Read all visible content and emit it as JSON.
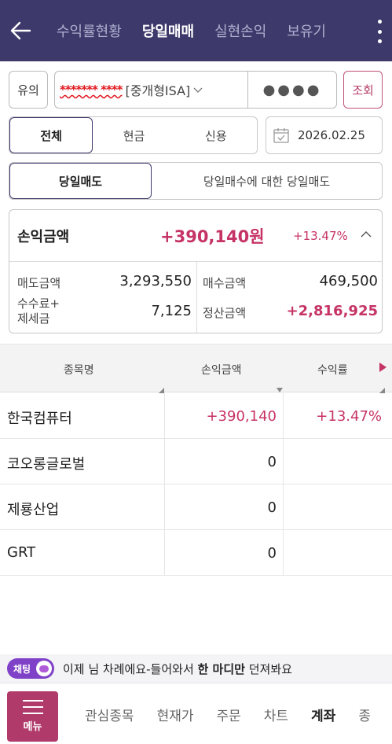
{
  "header": {
    "tabs": [
      {
        "label": "수익률현황",
        "active": false
      },
      {
        "label": "당일매매",
        "active": true
      },
      {
        "label": "실현손익",
        "active": false
      },
      {
        "label": "보유기",
        "active": false
      }
    ]
  },
  "account": {
    "caution_label": "유의",
    "account_number_redacted": "******* ****",
    "account_type": "[중개형ISA]",
    "password_mask": "●●●●",
    "query_label": "조회"
  },
  "filter": {
    "segments": [
      "전체",
      "현금",
      "신용"
    ],
    "active_segment": "전체",
    "date": "2026.02.25"
  },
  "trade_type": {
    "options": [
      "당일매도",
      "당일매수에 대한 당일매도"
    ],
    "active": "당일매도"
  },
  "summary": {
    "pl_label": "손익금액",
    "pl_value": "+390,140원",
    "pl_rate": "+13.47%",
    "sell_label": "매도금액",
    "sell_value": "3,293,550",
    "buy_label": "매수금액",
    "buy_value": "469,500",
    "fee_label_1": "수수료+",
    "fee_label_2": "제세금",
    "fee_value": "7,125",
    "settle_label": "정산금액",
    "settle_value": "+2,816,925"
  },
  "table": {
    "columns": [
      "종목명",
      "손익금액",
      "수익률"
    ],
    "rows": [
      {
        "name": "한국컴퓨터",
        "pl": "+390,140",
        "rate": "+13.47%",
        "highlight": true
      },
      {
        "name": "코오롱글로벌",
        "pl": "0",
        "rate": "",
        "highlight": false
      },
      {
        "name": "제룡산업",
        "pl": "0",
        "rate": "",
        "highlight": false
      },
      {
        "name": "GRT",
        "pl": "0",
        "rate": "",
        "highlight": false
      }
    ]
  },
  "chat": {
    "pill_label": "채팅",
    "text_prefix": "이제 님 차례에요-들어와서 ",
    "text_bold": "한 마디만",
    "text_suffix": " 던져봐요"
  },
  "bottom_nav": {
    "menu_label": "메뉴",
    "items": [
      {
        "label": "관심종목",
        "active": false
      },
      {
        "label": "현재가",
        "active": false
      },
      {
        "label": "주문",
        "active": false
      },
      {
        "label": "차트",
        "active": false
      },
      {
        "label": "계좌",
        "active": true
      },
      {
        "label": "종",
        "active": false
      }
    ]
  },
  "colors": {
    "header_bg": "#3d3a6b",
    "accent_pink": "#c63366",
    "menu_btn": "#b03a6a",
    "chat_pill": "#7f41c7"
  }
}
